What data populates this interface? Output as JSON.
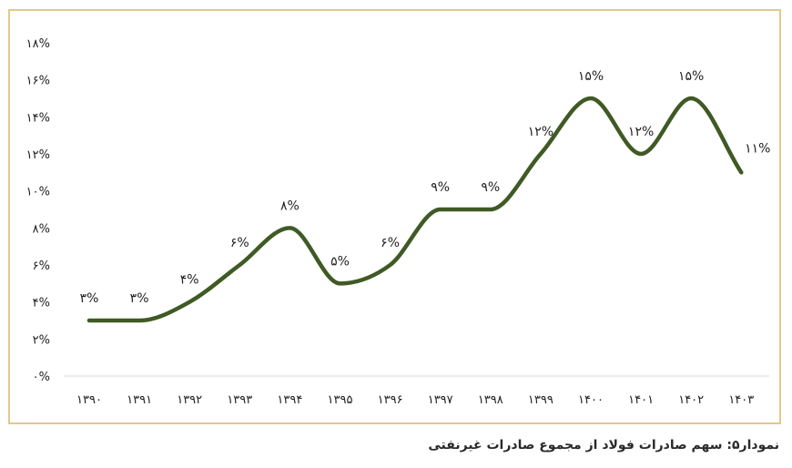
{
  "caption": "نمودار۵: سهم صادرات فولاد از مجموع صادرات غیرنفتی",
  "colors": {
    "line": "#3f5a24",
    "frame": "#e2c98a",
    "axis_text": "#222222",
    "baseline": "#d9d9d9"
  },
  "chart_data": {
    "type": "line",
    "categories": [
      "۱۳۹۰",
      "۱۳۹۱",
      "۱۳۹۲",
      "۱۳۹۳",
      "۱۳۹۴",
      "۱۳۹۵",
      "۱۳۹۶",
      "۱۳۹۷",
      "۱۳۹۸",
      "۱۳۹۹",
      "۱۴۰۰",
      "۱۴۰۱",
      "۱۴۰۲",
      "۱۴۰۳"
    ],
    "values": [
      3,
      3,
      4,
      6,
      8,
      5,
      6,
      9,
      9,
      12,
      15,
      12,
      15,
      11
    ],
    "data_labels": [
      "۳%",
      "۳%",
      "۴%",
      "۶%",
      "۸%",
      "۵%",
      "۶%",
      "۹%",
      "۹%",
      "۱۲%",
      "۱۵%",
      "۱۲%",
      "۱۵%",
      "۱۱%"
    ],
    "ylim": [
      0,
      18
    ],
    "yticks": [
      0,
      2,
      4,
      6,
      8,
      10,
      12,
      14,
      16,
      18
    ],
    "ytick_labels": [
      "۰%",
      "۲%",
      "۴%",
      "۶%",
      "۸%",
      "۱۰%",
      "۱۲%",
      "۱۴%",
      "۱۶%",
      "۱۸%"
    ],
    "grid": false,
    "legend": "none"
  }
}
